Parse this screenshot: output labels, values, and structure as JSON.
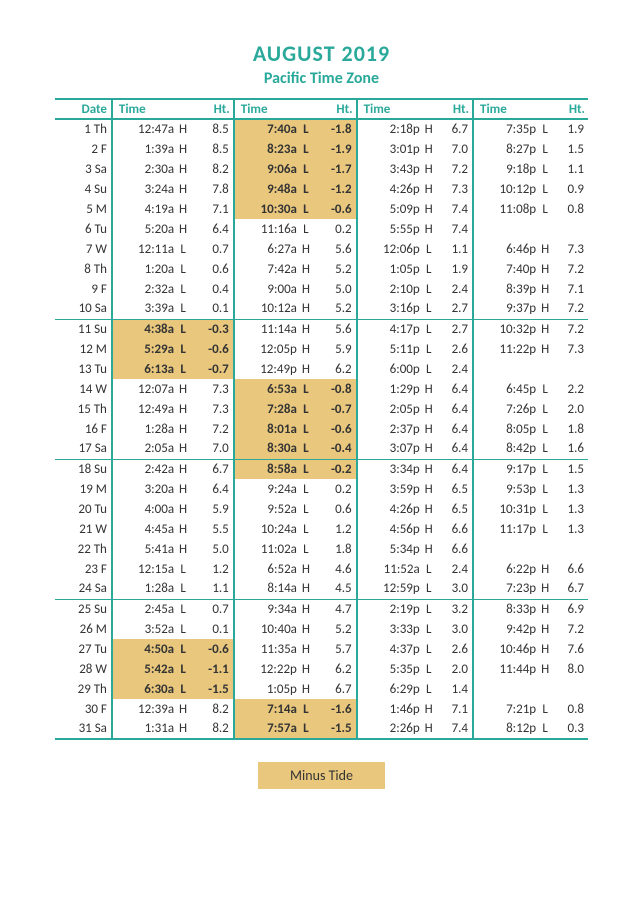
{
  "colors": {
    "accent": "#2aa99a",
    "highlight_bg": "#e9c87e",
    "text": "#333333",
    "background": "#ffffff"
  },
  "typography": {
    "title_fontsize": 22,
    "subtitle_fontsize": 16,
    "body_fontsize": 13
  },
  "title": "AUGUST 2019",
  "subtitle": "Pacific Time Zone",
  "headers": {
    "date": "Date",
    "time": "Time",
    "ht": "Ht."
  },
  "legend": "Minus Tide",
  "week_breaks_after": [
    10,
    17,
    24
  ],
  "rows": [
    {
      "d": "1 Th",
      "c": [
        {
          "t": "12:47a",
          "l": "H",
          "h": "8.5"
        },
        {
          "t": "7:40a",
          "l": "L",
          "h": "-1.8",
          "m": true
        },
        {
          "t": "2:18p",
          "l": "H",
          "h": "6.7"
        },
        {
          "t": "7:35p",
          "l": "L",
          "h": "1.9"
        }
      ]
    },
    {
      "d": "2 F",
      "c": [
        {
          "t": "1:39a",
          "l": "H",
          "h": "8.5"
        },
        {
          "t": "8:23a",
          "l": "L",
          "h": "-1.9",
          "m": true
        },
        {
          "t": "3:01p",
          "l": "H",
          "h": "7.0"
        },
        {
          "t": "8:27p",
          "l": "L",
          "h": "1.5"
        }
      ]
    },
    {
      "d": "3 Sa",
      "c": [
        {
          "t": "2:30a",
          "l": "H",
          "h": "8.2"
        },
        {
          "t": "9:06a",
          "l": "L",
          "h": "-1.7",
          "m": true
        },
        {
          "t": "3:43p",
          "l": "H",
          "h": "7.2"
        },
        {
          "t": "9:18p",
          "l": "L",
          "h": "1.1"
        }
      ]
    },
    {
      "d": "4 Su",
      "c": [
        {
          "t": "3:24a",
          "l": "H",
          "h": "7.8"
        },
        {
          "t": "9:48a",
          "l": "L",
          "h": "-1.2",
          "m": true
        },
        {
          "t": "4:26p",
          "l": "H",
          "h": "7.3"
        },
        {
          "t": "10:12p",
          "l": "L",
          "h": "0.9"
        }
      ]
    },
    {
      "d": "5 M",
      "c": [
        {
          "t": "4:19a",
          "l": "H",
          "h": "7.1"
        },
        {
          "t": "10:30a",
          "l": "L",
          "h": "-0.6",
          "m": true
        },
        {
          "t": "5:09p",
          "l": "H",
          "h": "7.4"
        },
        {
          "t": "11:08p",
          "l": "L",
          "h": "0.8"
        }
      ]
    },
    {
      "d": "6 Tu",
      "c": [
        {
          "t": "5:20a",
          "l": "H",
          "h": "6.4"
        },
        {
          "t": "11:16a",
          "l": "L",
          "h": "0.2"
        },
        {
          "t": "5:55p",
          "l": "H",
          "h": "7.4"
        },
        {
          "t": "",
          "l": "",
          "h": ""
        }
      ]
    },
    {
      "d": "7 W",
      "c": [
        {
          "t": "12:11a",
          "l": "L",
          "h": "0.7"
        },
        {
          "t": "6:27a",
          "l": "H",
          "h": "5.6"
        },
        {
          "t": "12:06p",
          "l": "L",
          "h": "1.1"
        },
        {
          "t": "6:46p",
          "l": "H",
          "h": "7.3"
        }
      ]
    },
    {
      "d": "8 Th",
      "c": [
        {
          "t": "1:20a",
          "l": "L",
          "h": "0.6"
        },
        {
          "t": "7:42a",
          "l": "H",
          "h": "5.2"
        },
        {
          "t": "1:05p",
          "l": "L",
          "h": "1.9"
        },
        {
          "t": "7:40p",
          "l": "H",
          "h": "7.2"
        }
      ]
    },
    {
      "d": "9 F",
      "c": [
        {
          "t": "2:32a",
          "l": "L",
          "h": "0.4"
        },
        {
          "t": "9:00a",
          "l": "H",
          "h": "5.0"
        },
        {
          "t": "2:10p",
          "l": "L",
          "h": "2.4"
        },
        {
          "t": "8:39p",
          "l": "H",
          "h": "7.1"
        }
      ]
    },
    {
      "d": "10 Sa",
      "c": [
        {
          "t": "3:39a",
          "l": "L",
          "h": "0.1"
        },
        {
          "t": "10:12a",
          "l": "H",
          "h": "5.2"
        },
        {
          "t": "3:16p",
          "l": "L",
          "h": "2.7"
        },
        {
          "t": "9:37p",
          "l": "H",
          "h": "7.2"
        }
      ]
    },
    {
      "d": "11 Su",
      "c": [
        {
          "t": "4:38a",
          "l": "L",
          "h": "-0.3",
          "m": true
        },
        {
          "t": "11:14a",
          "l": "H",
          "h": "5.6"
        },
        {
          "t": "4:17p",
          "l": "L",
          "h": "2.7"
        },
        {
          "t": "10:32p",
          "l": "H",
          "h": "7.2"
        }
      ]
    },
    {
      "d": "12 M",
      "c": [
        {
          "t": "5:29a",
          "l": "L",
          "h": "-0.6",
          "m": true
        },
        {
          "t": "12:05p",
          "l": "H",
          "h": "5.9"
        },
        {
          "t": "5:11p",
          "l": "L",
          "h": "2.6"
        },
        {
          "t": "11:22p",
          "l": "H",
          "h": "7.3"
        }
      ]
    },
    {
      "d": "13 Tu",
      "c": [
        {
          "t": "6:13a",
          "l": "L",
          "h": "-0.7",
          "m": true
        },
        {
          "t": "12:49p",
          "l": "H",
          "h": "6.2"
        },
        {
          "t": "6:00p",
          "l": "L",
          "h": "2.4"
        },
        {
          "t": "",
          "l": "",
          "h": ""
        }
      ]
    },
    {
      "d": "14 W",
      "c": [
        {
          "t": "12:07a",
          "l": "H",
          "h": "7.3"
        },
        {
          "t": "6:53a",
          "l": "L",
          "h": "-0.8",
          "m": true
        },
        {
          "t": "1:29p",
          "l": "H",
          "h": "6.4"
        },
        {
          "t": "6:45p",
          "l": "L",
          "h": "2.2"
        }
      ]
    },
    {
      "d": "15 Th",
      "c": [
        {
          "t": "12:49a",
          "l": "H",
          "h": "7.3"
        },
        {
          "t": "7:28a",
          "l": "L",
          "h": "-0.7",
          "m": true
        },
        {
          "t": "2:05p",
          "l": "H",
          "h": "6.4"
        },
        {
          "t": "7:26p",
          "l": "L",
          "h": "2.0"
        }
      ]
    },
    {
      "d": "16 F",
      "c": [
        {
          "t": "1:28a",
          "l": "H",
          "h": "7.2"
        },
        {
          "t": "8:01a",
          "l": "L",
          "h": "-0.6",
          "m": true
        },
        {
          "t": "2:37p",
          "l": "H",
          "h": "6.4"
        },
        {
          "t": "8:05p",
          "l": "L",
          "h": "1.8"
        }
      ]
    },
    {
      "d": "17 Sa",
      "c": [
        {
          "t": "2:05a",
          "l": "H",
          "h": "7.0"
        },
        {
          "t": "8:30a",
          "l": "L",
          "h": "-0.4",
          "m": true
        },
        {
          "t": "3:07p",
          "l": "H",
          "h": "6.4"
        },
        {
          "t": "8:42p",
          "l": "L",
          "h": "1.6"
        }
      ]
    },
    {
      "d": "18 Su",
      "c": [
        {
          "t": "2:42a",
          "l": "H",
          "h": "6.7"
        },
        {
          "t": "8:58a",
          "l": "L",
          "h": "-0.2",
          "m": true
        },
        {
          "t": "3:34p",
          "l": "H",
          "h": "6.4"
        },
        {
          "t": "9:17p",
          "l": "L",
          "h": "1.5"
        }
      ]
    },
    {
      "d": "19 M",
      "c": [
        {
          "t": "3:20a",
          "l": "H",
          "h": "6.4"
        },
        {
          "t": "9:24a",
          "l": "L",
          "h": "0.2"
        },
        {
          "t": "3:59p",
          "l": "H",
          "h": "6.5"
        },
        {
          "t": "9:53p",
          "l": "L",
          "h": "1.3"
        }
      ]
    },
    {
      "d": "20 Tu",
      "c": [
        {
          "t": "4:00a",
          "l": "H",
          "h": "5.9"
        },
        {
          "t": "9:52a",
          "l": "L",
          "h": "0.6"
        },
        {
          "t": "4:26p",
          "l": "H",
          "h": "6.5"
        },
        {
          "t": "10:31p",
          "l": "L",
          "h": "1.3"
        }
      ]
    },
    {
      "d": "21 W",
      "c": [
        {
          "t": "4:45a",
          "l": "H",
          "h": "5.5"
        },
        {
          "t": "10:24a",
          "l": "L",
          "h": "1.2"
        },
        {
          "t": "4:56p",
          "l": "H",
          "h": "6.6"
        },
        {
          "t": "11:17p",
          "l": "L",
          "h": "1.3"
        }
      ]
    },
    {
      "d": "22 Th",
      "c": [
        {
          "t": "5:41a",
          "l": "H",
          "h": "5.0"
        },
        {
          "t": "11:02a",
          "l": "L",
          "h": "1.8"
        },
        {
          "t": "5:34p",
          "l": "H",
          "h": "6.6"
        },
        {
          "t": "",
          "l": "",
          "h": ""
        }
      ]
    },
    {
      "d": "23 F",
      "c": [
        {
          "t": "12:15a",
          "l": "L",
          "h": "1.2"
        },
        {
          "t": "6:52a",
          "l": "H",
          "h": "4.6"
        },
        {
          "t": "11:52a",
          "l": "L",
          "h": "2.4"
        },
        {
          "t": "6:22p",
          "l": "H",
          "h": "6.6"
        }
      ]
    },
    {
      "d": "24 Sa",
      "c": [
        {
          "t": "1:28a",
          "l": "L",
          "h": "1.1"
        },
        {
          "t": "8:14a",
          "l": "H",
          "h": "4.5"
        },
        {
          "t": "12:59p",
          "l": "L",
          "h": "3.0"
        },
        {
          "t": "7:23p",
          "l": "H",
          "h": "6.7"
        }
      ]
    },
    {
      "d": "25 Su",
      "c": [
        {
          "t": "2:45a",
          "l": "L",
          "h": "0.7"
        },
        {
          "t": "9:34a",
          "l": "H",
          "h": "4.7"
        },
        {
          "t": "2:19p",
          "l": "L",
          "h": "3.2"
        },
        {
          "t": "8:33p",
          "l": "H",
          "h": "6.9"
        }
      ]
    },
    {
      "d": "26 M",
      "c": [
        {
          "t": "3:52a",
          "l": "L",
          "h": "0.1"
        },
        {
          "t": "10:40a",
          "l": "H",
          "h": "5.2"
        },
        {
          "t": "3:33p",
          "l": "L",
          "h": "3.0"
        },
        {
          "t": "9:42p",
          "l": "H",
          "h": "7.2"
        }
      ]
    },
    {
      "d": "27 Tu",
      "c": [
        {
          "t": "4:50a",
          "l": "L",
          "h": "-0.6",
          "m": true
        },
        {
          "t": "11:35a",
          "l": "H",
          "h": "5.7"
        },
        {
          "t": "4:37p",
          "l": "L",
          "h": "2.6"
        },
        {
          "t": "10:46p",
          "l": "H",
          "h": "7.6"
        }
      ]
    },
    {
      "d": "28 W",
      "c": [
        {
          "t": "5:42a",
          "l": "L",
          "h": "-1.1",
          "m": true
        },
        {
          "t": "12:22p",
          "l": "H",
          "h": "6.2"
        },
        {
          "t": "5:35p",
          "l": "L",
          "h": "2.0"
        },
        {
          "t": "11:44p",
          "l": "H",
          "h": "8.0"
        }
      ]
    },
    {
      "d": "29 Th",
      "c": [
        {
          "t": "6:30a",
          "l": "L",
          "h": "-1.5",
          "m": true
        },
        {
          "t": "1:05p",
          "l": "H",
          "h": "6.7"
        },
        {
          "t": "6:29p",
          "l": "L",
          "h": "1.4"
        },
        {
          "t": "",
          "l": "",
          "h": ""
        }
      ]
    },
    {
      "d": "30 F",
      "c": [
        {
          "t": "12:39a",
          "l": "H",
          "h": "8.2"
        },
        {
          "t": "7:14a",
          "l": "L",
          "h": "-1.6",
          "m": true
        },
        {
          "t": "1:46p",
          "l": "H",
          "h": "7.1"
        },
        {
          "t": "7:21p",
          "l": "L",
          "h": "0.8"
        }
      ]
    },
    {
      "d": "31 Sa",
      "c": [
        {
          "t": "1:31a",
          "l": "H",
          "h": "8.2"
        },
        {
          "t": "7:57a",
          "l": "L",
          "h": "-1.5",
          "m": true
        },
        {
          "t": "2:26p",
          "l": "H",
          "h": "7.4"
        },
        {
          "t": "8:12p",
          "l": "L",
          "h": "0.3"
        }
      ]
    }
  ]
}
